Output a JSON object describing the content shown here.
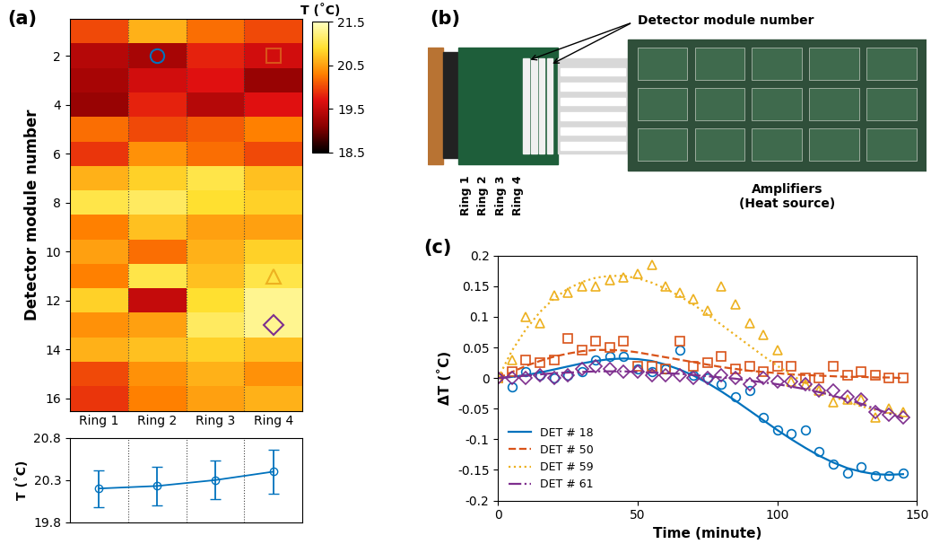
{
  "chart_data": [
    {
      "panel": "(a)",
      "type": "heatmap",
      "y_label": "Detector module number",
      "categories": [
        "Ring 1",
        "Ring 2",
        "Ring 3",
        "Ring 4"
      ],
      "y": [
        1,
        2,
        3,
        4,
        5,
        6,
        7,
        8,
        9,
        10,
        11,
        12,
        13,
        14,
        15,
        16
      ],
      "ylim": [
        16.5,
        0.5
      ],
      "yticks": [
        2,
        4,
        6,
        8,
        10,
        12,
        14,
        16
      ],
      "cells": [
        [
          20.0,
          20.6,
          20.2,
          20.0
        ],
        [
          19.4,
          19.3,
          19.8,
          19.6
        ],
        [
          19.3,
          19.6,
          19.7,
          19.2
        ],
        [
          19.2,
          19.8,
          19.4,
          19.7
        ],
        [
          20.2,
          20.0,
          20.1,
          20.3
        ],
        [
          19.9,
          20.4,
          20.2,
          20.0
        ],
        [
          20.6,
          20.8,
          21.0,
          20.7
        ],
        [
          21.0,
          21.1,
          20.9,
          20.8
        ],
        [
          20.3,
          20.7,
          20.5,
          20.5
        ],
        [
          20.5,
          20.2,
          20.6,
          20.8
        ],
        [
          20.3,
          21.0,
          20.7,
          21.0
        ],
        [
          20.8,
          19.5,
          20.9,
          21.3
        ],
        [
          20.4,
          20.5,
          21.1,
          21.3
        ],
        [
          20.6,
          20.7,
          20.8,
          20.7
        ],
        [
          20.0,
          20.4,
          20.6,
          20.4
        ],
        [
          19.9,
          20.3,
          20.5,
          20.6
        ]
      ],
      "colorbar": {
        "label": "T (˚C)",
        "range": [
          18.5,
          21.5
        ],
        "ticks": [
          18.5,
          19.5,
          20.5,
          21.5
        ]
      },
      "highlights": [
        {
          "category": "Ring 2",
          "y": 2,
          "marker": "circle",
          "color": "#0072BD"
        },
        {
          "category": "Ring 4",
          "y": 2,
          "marker": "square",
          "color": "#D95319"
        },
        {
          "category": "Ring 4",
          "y": 11,
          "marker": "triangle",
          "color": "#EDB120"
        },
        {
          "category": "Ring 4",
          "y": 13,
          "marker": "diamond",
          "color": "#7E2F8E"
        }
      ]
    },
    {
      "type": "line",
      "y_label": "T (˚C)",
      "categories": [
        "Ring 1",
        "Ring 2",
        "Ring 3",
        "Ring 4"
      ],
      "values": [
        20.2,
        20.23,
        20.3,
        20.4
      ],
      "errors": [
        0.22,
        0.23,
        0.23,
        0.26
      ],
      "ylim": [
        19.8,
        20.8
      ],
      "yticks": [
        19.8,
        20.3,
        20.8
      ],
      "tick_labels": "y",
      "color": "#0072BD",
      "marker": "circle"
    },
    {
      "panel": "(c)",
      "type": "scatter",
      "x_label": "Time (minute)",
      "y_label": "ΔT (˚C)",
      "x": [
        0,
        5,
        10,
        15,
        20,
        25,
        30,
        35,
        40,
        45,
        50,
        55,
        60,
        65,
        70,
        75,
        80,
        85,
        90,
        95,
        100,
        105,
        110,
        115,
        120,
        125,
        130,
        135,
        140,
        145
      ],
      "xlim": [
        0,
        150
      ],
      "xticks": [
        0,
        50,
        100,
        150
      ],
      "ylim": [
        -0.2,
        0.2
      ],
      "yticks": [
        -0.2,
        -0.15,
        -0.1,
        -0.05,
        0,
        0.05,
        0.1,
        0.15,
        0.2
      ],
      "legend": "lower left",
      "series": [
        {
          "name": "DET # 18",
          "color": "#0072BD",
          "marker": "circle",
          "line_style": "solid",
          "values": [
            0,
            -0.015,
            0.01,
            0.005,
            0.0,
            0.005,
            0.01,
            0.03,
            0.035,
            0.035,
            0.015,
            0.01,
            0.015,
            0.045,
            0.005,
            0.0,
            -0.01,
            -0.03,
            -0.02,
            -0.065,
            -0.085,
            -0.09,
            -0.085,
            -0.12,
            -0.14,
            -0.155,
            -0.145,
            -0.16,
            -0.16,
            -0.155
          ],
          "fit": [
            0,
            0.002,
            0.005,
            0.009,
            0.014,
            0.019,
            0.024,
            0.028,
            0.031,
            0.032,
            0.031,
            0.028,
            0.022,
            0.014,
            0.004,
            -0.008,
            -0.022,
            -0.037,
            -0.053,
            -0.069,
            -0.085,
            -0.1,
            -0.114,
            -0.127,
            -0.138,
            -0.147,
            -0.153,
            -0.157,
            -0.158,
            -0.157
          ]
        },
        {
          "name": "DET # 50",
          "color": "#D95319",
          "marker": "square",
          "line_style": "dashed",
          "values": [
            0,
            0.01,
            0.03,
            0.025,
            0.03,
            0.065,
            0.045,
            0.06,
            0.05,
            0.06,
            0.02,
            0.02,
            0.015,
            0.06,
            0.02,
            0.025,
            0.035,
            0.015,
            0.02,
            0.01,
            0.02,
            0.02,
            0.0,
            0.0,
            0.02,
            0.005,
            0.01,
            0.005,
            0.0,
            0.0
          ],
          "fit": [
            0,
            0.01,
            0.02,
            0.028,
            0.035,
            0.04,
            0.044,
            0.046,
            0.046,
            0.045,
            0.042,
            0.038,
            0.034,
            0.03,
            0.026,
            0.022,
            0.018,
            0.015,
            0.012,
            0.01,
            0.008,
            0.006,
            0.005,
            0.004,
            0.003,
            0.002,
            0.002,
            0.001,
            0.001,
            0.0
          ]
        },
        {
          "name": "DET # 59",
          "color": "#EDB120",
          "marker": "triangle",
          "line_style": "dotted",
          "values": [
            0,
            0.03,
            0.1,
            0.09,
            0.135,
            0.14,
            0.15,
            0.15,
            0.16,
            0.165,
            0.17,
            0.185,
            0.15,
            0.14,
            0.13,
            0.11,
            0.15,
            0.12,
            0.09,
            0.07,
            0.045,
            -0.005,
            -0.01,
            -0.02,
            -0.04,
            -0.035,
            -0.035,
            -0.065,
            -0.05,
            -0.055
          ],
          "fit": [
            0,
            0.045,
            0.08,
            0.108,
            0.13,
            0.146,
            0.157,
            0.164,
            0.167,
            0.167,
            0.163,
            0.156,
            0.146,
            0.134,
            0.12,
            0.104,
            0.087,
            0.07,
            0.053,
            0.036,
            0.02,
            0.005,
            -0.008,
            -0.02,
            -0.03,
            -0.039,
            -0.046,
            -0.052,
            -0.057,
            -0.062
          ]
        },
        {
          "name": "DET # 61",
          "color": "#7E2F8E",
          "marker": "diamond",
          "line_style": "dashdot",
          "values": [
            0,
            0.0,
            0.0,
            0.005,
            0.0,
            0.005,
            0.015,
            0.02,
            0.015,
            0.01,
            0.01,
            0.005,
            0.005,
            0.005,
            0.0,
            0.0,
            0.005,
            0.0,
            -0.01,
            0.0,
            -0.005,
            -0.005,
            -0.01,
            -0.02,
            -0.02,
            -0.03,
            -0.035,
            -0.055,
            -0.06,
            -0.065
          ],
          "fit": [
            0,
            0.002,
            0.004,
            0.006,
            0.008,
            0.009,
            0.01,
            0.011,
            0.011,
            0.011,
            0.01,
            0.009,
            0.008,
            0.007,
            0.005,
            0.003,
            0.001,
            -0.001,
            -0.004,
            -0.007,
            -0.01,
            -0.014,
            -0.018,
            -0.023,
            -0.029,
            -0.035,
            -0.042,
            -0.05,
            -0.058,
            -0.066
          ]
        }
      ]
    }
  ],
  "photo": {
    "panel": "(b)",
    "modules_label": "Detector module number",
    "rings": [
      "Ring 1",
      "Ring 2",
      "Ring 3",
      "Ring 4"
    ],
    "heat_source": "Amplifiers\n(Heat source)"
  }
}
